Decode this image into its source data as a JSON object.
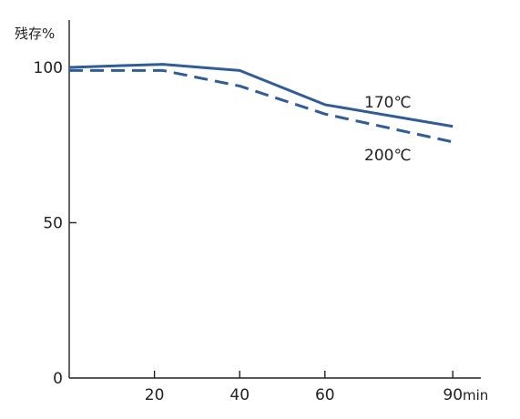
{
  "chart_data": {
    "type": "line",
    "title": "",
    "ylabel": "残存%",
    "xlabel": "min",
    "xlim": [
      0,
      100
    ],
    "ylim": [
      0,
      100
    ],
    "x_ticks": [
      20,
      40,
      60,
      90
    ],
    "y_ticks": [
      0,
      50,
      100
    ],
    "grid": false,
    "series": [
      {
        "name": "170℃",
        "style": "solid",
        "color": "#2f5d99",
        "points": [
          [
            0,
            100
          ],
          [
            22,
            101
          ],
          [
            40,
            99
          ],
          [
            60,
            88
          ],
          [
            90,
            81
          ]
        ]
      },
      {
        "name": "200℃",
        "style": "dashed",
        "color": "#2f5d99",
        "points": [
          [
            0,
            99
          ],
          [
            22,
            99
          ],
          [
            40,
            94
          ],
          [
            60,
            85
          ],
          [
            90,
            76
          ]
        ]
      }
    ]
  }
}
